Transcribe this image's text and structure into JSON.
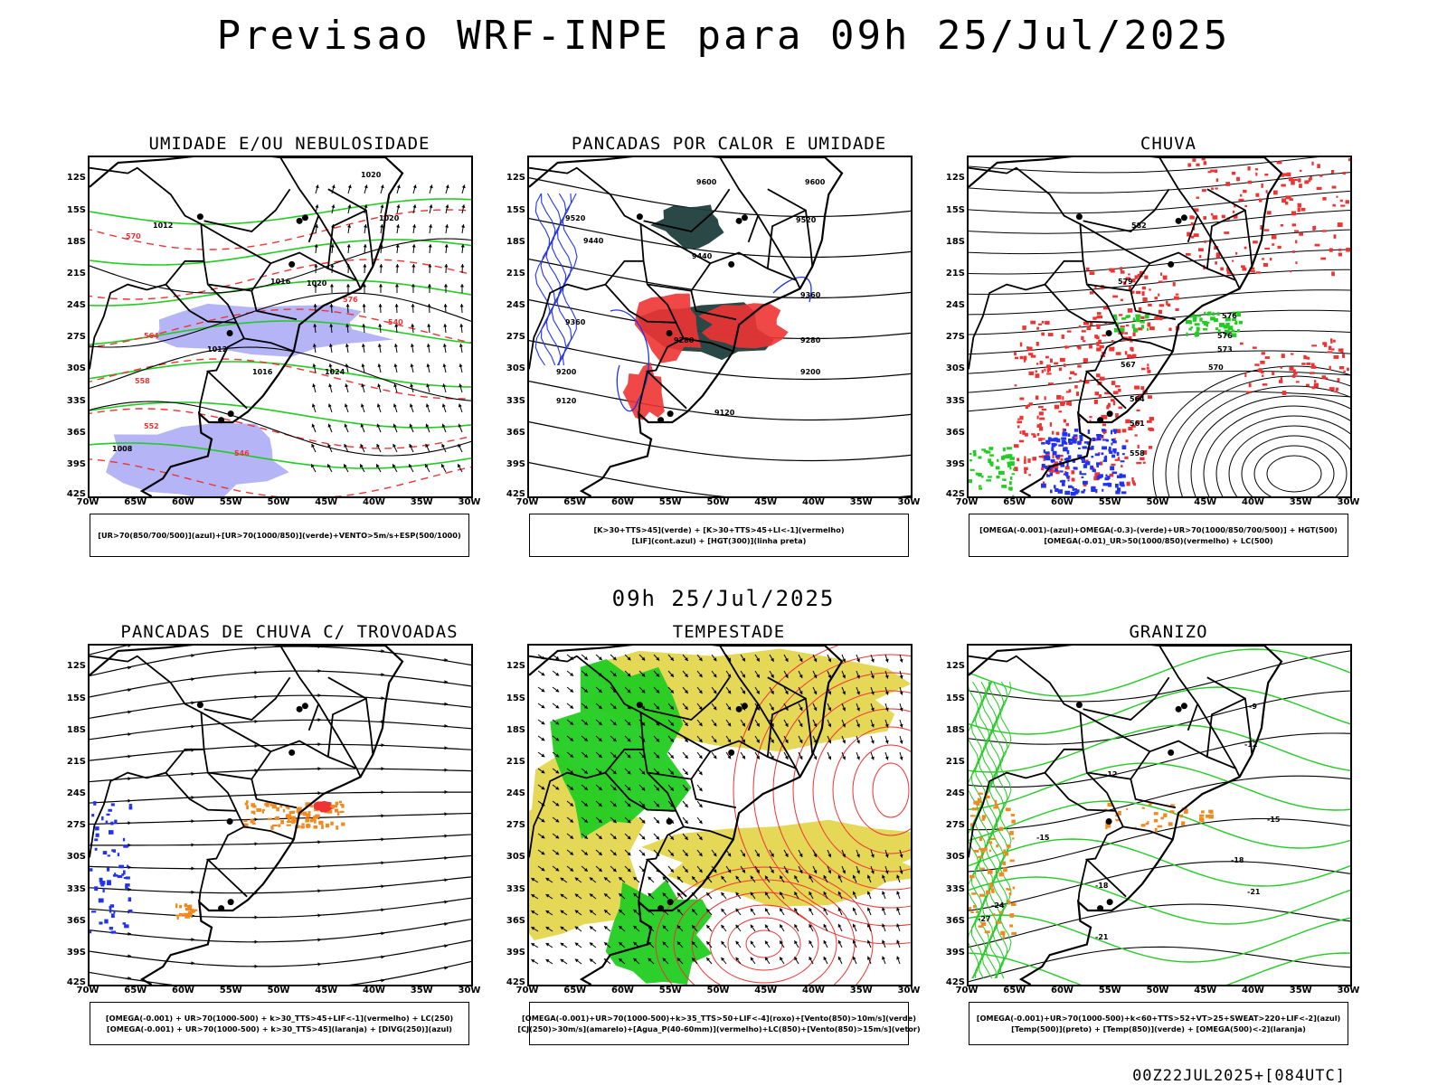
{
  "main_title": "Previsao WRF-INPE  para 09h 25/Jul/2025",
  "sub_title": "09h 25/Jul/2025",
  "footer_stamp": "00Z22JUL2025+[084UTC]",
  "lat_labels": [
    "12S",
    "15S",
    "18S",
    "21S",
    "24S",
    "27S",
    "30S",
    "33S",
    "36S",
    "39S",
    "42S"
  ],
  "lon_labels": [
    "70W",
    "65W",
    "60W",
    "55W",
    "50W",
    "45W",
    "40W",
    "35W",
    "30W"
  ],
  "colors": {
    "map_outline": "#000000",
    "green": "#22cc22",
    "blue": "#2233ee",
    "red": "#ee3333",
    "orange": "#f08a20",
    "yellow": "#e0d13a",
    "dark_teal": "#1f3f3c",
    "purple_blue": "#7777ee"
  },
  "panels": [
    {
      "title": "UMIDADE E/OU NEBULOSIDADE",
      "legend": [
        "[UR>70(850/700/500)](azul)+[UR>70(1000/850)](verde)+VENTO>5m/s+ESP(500/1000)"
      ],
      "contour_labels": [
        "1020",
        "1020",
        "1012",
        "1016",
        "1020",
        "1012",
        "1016",
        "1024",
        "1008",
        "570",
        "564",
        "558",
        "552",
        "546",
        "540",
        "576"
      ]
    },
    {
      "title": "PANCADAS POR CALOR E UMIDADE",
      "legend": [
        "[K>30+TTS>45](verde) + [K>30+TTS>45+LI<-1](vermelho)",
        "[LIF](cont.azul) + [HGT(300)](linha preta)"
      ],
      "contour_labels": [
        "9600",
        "9600",
        "9520",
        "9520",
        "9440",
        "9440",
        "9360",
        "9360",
        "9280",
        "9280",
        "9200",
        "9200",
        "9120",
        "9120"
      ]
    },
    {
      "title": "CHUVA",
      "legend": [
        "[OMEGA(-0.001)-(azul)+OMEGA(-0.3)-(verde)+UR>70(1000/850/700/500)] + HGT(500)",
        "[OMEGA(-0.01)_UR>50(1000/850)(vermelho) + LC(500)"
      ],
      "contour_labels": [
        "582",
        "579",
        "576",
        "576",
        "573",
        "570",
        "567",
        "564",
        "561",
        "558"
      ]
    },
    {
      "title": "PANCADAS DE CHUVA C/ TROVOADAS",
      "legend": [
        "[OMEGA(-0.001) + UR>70(1000-500) + k>30_TTS>45+LIF<-1](vermelho) + LC(250)",
        "[OMEGA(-0.001) + UR>70(1000-500) + k>30_TTS>45](laranja) + [DIVG(250)](azul)"
      ],
      "contour_labels": []
    },
    {
      "title": "TEMPESTADE",
      "legend": [
        "[OMEGA(-0.001)+UR>70(1000-500)+k>35_TTS>50+LIF<-4](roxo)+[Vento(850)>10m/s](verde)",
        "[CJ(250)>30m/s](amarelo)+[Agua_P(40-60mm)](vermelho)+LC(850)+[Vento(850)>15m/s](vetor)"
      ],
      "contour_labels": []
    },
    {
      "title": "GRANIZO",
      "legend": [
        "[OMEGA(-0.001)+UR>70(1000-500)+k<60+TTS>52+VT>25+SWEAT>220+LIF<-2](azul)",
        "[Temp(500)](preto) + [Temp(850)](verde) + [OMEGA(500)<-2](laranja)"
      ],
      "contour_labels": [
        "-9",
        "-12",
        "-12",
        "-15",
        "-15",
        "-18",
        "-21",
        "-21",
        "-24",
        "-27",
        "-18"
      ]
    }
  ]
}
